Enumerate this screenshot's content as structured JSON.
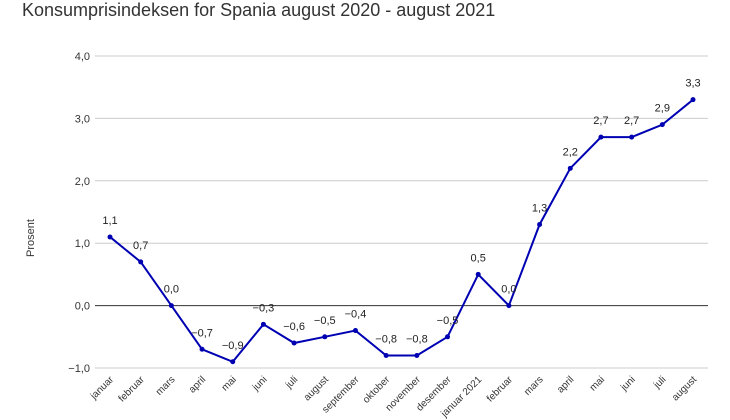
{
  "chart_data": {
    "type": "line",
    "title": "Konsumprisindeksen for Spania august 2020 - august 2021",
    "xlabel": "",
    "ylabel": "Prosent",
    "ylim": [
      -1.0,
      4.0
    ],
    "yticks": [
      "4,0",
      "3,0",
      "2,0",
      "1,0",
      "0,0",
      "−1,0"
    ],
    "grid": true,
    "legend": "none",
    "line_color": "#0000b3",
    "categories": [
      "januar",
      "februar",
      "mars",
      "april",
      "mai",
      "juni",
      "juli",
      "august",
      "september",
      "oktober",
      "november",
      "desember",
      "januar 2021",
      "februar",
      "mars",
      "april",
      "mai",
      "juni",
      "juli",
      "august"
    ],
    "series": [
      {
        "values": [
          1.1,
          0.7,
          0.0,
          -0.7,
          -0.9,
          -0.3,
          -0.6,
          -0.5,
          -0.4,
          -0.8,
          -0.8,
          -0.5,
          0.5,
          0.0,
          1.3,
          2.2,
          2.7,
          2.7,
          2.9,
          3.3
        ],
        "data_labels": [
          "1,1",
          "0,7",
          "0,0",
          "−0,7",
          "−0,9",
          "−0,3",
          "−0,6",
          "−0,5",
          "−0,4",
          "−0,8",
          "−0,8",
          "−0,5",
          "0,5",
          "0,0",
          "1,3",
          "2,2",
          "2,7",
          "2,7",
          "2,9",
          "3,3"
        ]
      }
    ]
  }
}
